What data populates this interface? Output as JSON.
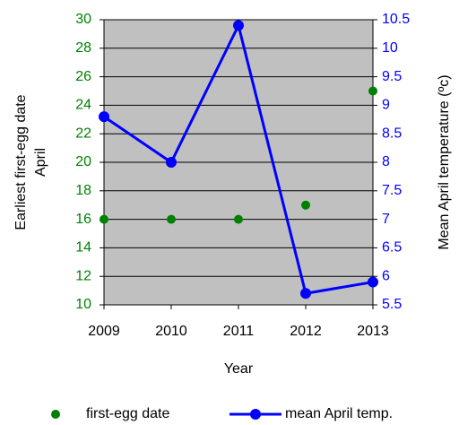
{
  "chart_data": {
    "type": "line",
    "y_label": [
      "Earliest first-egg date",
      "April"
    ],
    "y2_label": "Mean April temperature (ºc)",
    "x_label": "Year",
    "categories": [
      "2009",
      "2010",
      "2011",
      "2012",
      "2013"
    ],
    "series": [
      {
        "name": "first-egg date",
        "color": "#008000",
        "type": "scatter",
        "values": [
          16,
          16,
          16,
          17,
          25
        ]
      },
      {
        "name": "mean April temp.",
        "color": "#0000ff",
        "type": "line",
        "axis": "y2",
        "values": [
          8.8,
          8.0,
          10.4,
          5.7,
          5.9
        ]
      }
    ],
    "ylim": [
      10,
      30
    ],
    "yticks": [
      10,
      12,
      14,
      16,
      18,
      20,
      22,
      24,
      26,
      28,
      30
    ],
    "y2lim": [
      5.5,
      10.5
    ],
    "y2ticks": [
      5.5,
      6,
      6.5,
      7,
      7.5,
      8,
      8.5,
      9,
      9.5,
      10,
      10.5
    ],
    "ytick_color": "#008000",
    "y2tick_color": "#0000ff",
    "plot_background": "#c0c0c0",
    "grid": true,
    "legend": "bottom"
  }
}
